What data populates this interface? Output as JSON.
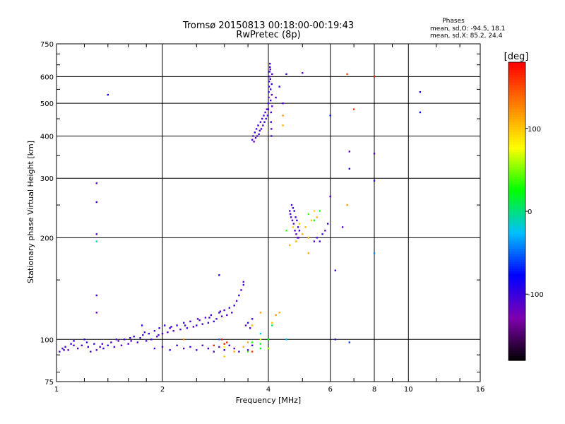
{
  "chart_data": {
    "type": "scatter",
    "title": "Tromsø 20150813 00:18:00-00:19:43",
    "subtitle": "RwPretec (8p)",
    "xlabel": "Frequency [MHz]",
    "ylabel": "Stationary phase Virtual Height [km]",
    "x_scale": "log",
    "y_scale": "log",
    "xlim": [
      1,
      16
    ],
    "ylim": [
      75,
      750
    ],
    "xticks": [
      1,
      2,
      4,
      6,
      8,
      10,
      16
    ],
    "xtick_labels": [
      "1",
      "2",
      "4",
      "6",
      "8",
      "10",
      "16"
    ],
    "yticks": [
      75,
      100,
      200,
      300,
      400,
      500,
      600,
      750
    ],
    "ytick_labels": [
      "75",
      "100",
      "200",
      "300",
      "400",
      "500",
      "600",
      "750"
    ],
    "grid": true,
    "stats": {
      "header": "Phases",
      "lines": [
        "mean, sd,O: -94.5, 18.1",
        "mean, sd,X:  85.2, 24.4"
      ]
    },
    "colorbar": {
      "label": "[deg]",
      "range": [
        -180,
        180
      ],
      "ticks": [
        100,
        0,
        -100
      ],
      "tick_labels": [
        "100",
        "0",
        "-100"
      ],
      "colors": [
        "#000000",
        "#8000b0",
        "#0000ff",
        "#00c0ff",
        "#00ff00",
        "#ffff00",
        "#ff8000",
        "#ff0000"
      ]
    },
    "series": [
      {
        "points": [
          [
            1.02,
            92,
            -110
          ],
          [
            1.04,
            94,
            -105
          ],
          [
            1.06,
            95,
            -100
          ],
          [
            1.08,
            93,
            -115
          ],
          [
            1.1,
            97,
            -108
          ],
          [
            1.12,
            99,
            -102
          ],
          [
            1.15,
            94,
            -112
          ],
          [
            1.18,
            96,
            -104
          ],
          [
            1.2,
            100,
            -98
          ],
          [
            1.23,
            95,
            -110
          ],
          [
            1.25,
            92,
            -106
          ],
          [
            1.28,
            97,
            -100
          ],
          [
            1.3,
            93,
            -112
          ],
          [
            1.33,
            95,
            -104
          ],
          [
            1.36,
            94,
            -108
          ],
          [
            1.4,
            96,
            -100
          ],
          [
            1.43,
            98,
            -110
          ],
          [
            1.46,
            95,
            -102
          ],
          [
            1.5,
            99,
            -106
          ],
          [
            1.53,
            96,
            -112
          ],
          [
            1.56,
            100,
            -98
          ],
          [
            1.6,
            97,
            -104
          ],
          [
            1.63,
            99,
            -110
          ],
          [
            1.66,
            102,
            -100
          ],
          [
            1.7,
            98,
            -106
          ],
          [
            1.73,
            101,
            -112
          ],
          [
            1.76,
            103,
            -102
          ],
          [
            1.8,
            99,
            -108
          ],
          [
            1.83,
            104,
            -100
          ],
          [
            1.86,
            100,
            -110
          ],
          [
            1.9,
            106,
            -104
          ],
          [
            1.93,
            102,
            -112
          ],
          [
            1.96,
            108,
            -98
          ],
          [
            2.0,
            104,
            -106
          ],
          [
            2.03,
            110,
            -102
          ],
          [
            2.07,
            105,
            -110
          ],
          [
            2.1,
            108,
            -100
          ],
          [
            2.15,
            106,
            -108
          ],
          [
            2.2,
            110,
            -104
          ],
          [
            2.25,
            107,
            -112
          ],
          [
            2.3,
            112,
            -98
          ],
          [
            2.35,
            108,
            -106
          ],
          [
            2.4,
            113,
            -102
          ],
          [
            2.45,
            109,
            -110
          ],
          [
            2.5,
            110,
            -100
          ],
          [
            2.55,
            114,
            -108
          ],
          [
            2.6,
            111,
            -104
          ],
          [
            2.65,
            116,
            -112
          ],
          [
            2.7,
            112,
            -98
          ],
          [
            2.75,
            118,
            -106
          ],
          [
            2.8,
            113,
            -102
          ],
          [
            2.85,
            115,
            -110
          ],
          [
            2.9,
            120,
            -100
          ],
          [
            2.95,
            117,
            -108
          ],
          [
            3.0,
            122,
            -104
          ],
          [
            3.05,
            118,
            -112
          ],
          [
            3.1,
            124,
            -98
          ],
          [
            3.15,
            120,
            -106
          ],
          [
            3.2,
            126,
            -102
          ],
          [
            3.25,
            130,
            -110
          ],
          [
            3.3,
            135,
            -100
          ],
          [
            3.35,
            140,
            -108
          ],
          [
            3.4,
            145,
            -104
          ],
          [
            3.45,
            110,
            -112
          ],
          [
            3.5,
            112,
            -98
          ],
          [
            3.55,
            108,
            -106
          ],
          [
            3.6,
            115,
            -102
          ],
          [
            1.05,
            93,
            -104
          ],
          [
            1.12,
            96,
            -110
          ],
          [
            1.22,
            98,
            -100
          ],
          [
            1.35,
            97,
            -106
          ],
          [
            1.48,
            100,
            -112
          ],
          [
            1.62,
            101,
            -98
          ],
          [
            1.78,
            105,
            -104
          ],
          [
            1.95,
            103,
            -110
          ],
          [
            2.12,
            109,
            -100
          ],
          [
            2.32,
            110,
            -106
          ],
          [
            2.52,
            115,
            -112
          ],
          [
            2.72,
            116,
            -98
          ],
          [
            2.92,
            121,
            -104
          ],
          [
            1.9,
            94,
            -102
          ],
          [
            2.0,
            95,
            -108
          ],
          [
            2.1,
            93,
            -100
          ],
          [
            2.2,
            96,
            -106
          ],
          [
            2.3,
            94,
            -112
          ],
          [
            2.4,
            95,
            -98
          ],
          [
            2.5,
            93,
            -104
          ],
          [
            2.6,
            96,
            -110
          ],
          [
            2.7,
            94,
            -100
          ],
          [
            2.8,
            92,
            -106
          ],
          [
            2.9,
            95,
            -112
          ],
          [
            3.0,
            93,
            -98
          ],
          [
            3.1,
            96,
            -104
          ],
          [
            3.2,
            94,
            -110
          ],
          [
            3.3,
            92,
            -100
          ],
          [
            3.4,
            95,
            -106
          ],
          [
            3.5,
            93,
            -112
          ],
          [
            3.6,
            96,
            -98
          ],
          [
            1.3,
            120,
            -120
          ],
          [
            2.9,
            155,
            -100
          ],
          [
            3.4,
            148,
            -110
          ],
          [
            1.75,
            110,
            -95
          ],
          [
            3.6,
            390,
            -110
          ],
          [
            3.62,
            400,
            -105
          ],
          [
            3.64,
            385,
            -115
          ],
          [
            3.66,
            410,
            -100
          ],
          [
            3.68,
            395,
            -108
          ],
          [
            3.7,
            420,
            -102
          ],
          [
            3.72,
            400,
            -112
          ],
          [
            3.74,
            430,
            -98
          ],
          [
            3.76,
            405,
            -106
          ],
          [
            3.78,
            415,
            -104
          ],
          [
            3.8,
            440,
            -110
          ],
          [
            3.82,
            420,
            -100
          ],
          [
            3.84,
            450,
            -108
          ],
          [
            3.86,
            430,
            -102
          ],
          [
            3.88,
            460,
            -112
          ],
          [
            3.9,
            440,
            -98
          ],
          [
            3.92,
            470,
            -106
          ],
          [
            3.94,
            450,
            -104
          ],
          [
            3.96,
            480,
            -110
          ],
          [
            3.98,
            460,
            -100
          ],
          [
            4.0,
            480,
            -108
          ],
          [
            4.0,
            500,
            -102
          ],
          [
            4.01,
            520,
            -112
          ],
          [
            4.01,
            540,
            -98
          ],
          [
            4.02,
            560,
            -106
          ],
          [
            4.02,
            580,
            -104
          ],
          [
            4.03,
            600,
            -110
          ],
          [
            4.03,
            620,
            -100
          ],
          [
            4.04,
            640,
            -108
          ],
          [
            4.04,
            655,
            -102
          ],
          [
            4.05,
            630,
            -112
          ],
          [
            4.05,
            590,
            -98
          ],
          [
            4.06,
            550,
            -106
          ],
          [
            4.06,
            510,
            -104
          ],
          [
            4.07,
            470,
            -110
          ],
          [
            4.07,
            440,
            -100
          ],
          [
            4.08,
            420,
            -108
          ],
          [
            4.08,
            400,
            -102
          ],
          [
            4.09,
            530,
            -112
          ],
          [
            4.09,
            570,
            -98
          ],
          [
            4.1,
            610,
            -106
          ],
          [
            4.1,
            490,
            -104
          ],
          [
            4.2,
            520,
            -110
          ],
          [
            4.3,
            560,
            -100
          ],
          [
            4.4,
            500,
            -108
          ],
          [
            4.5,
            610,
            -102
          ],
          [
            4.6,
            240,
            -110
          ],
          [
            4.62,
            235,
            -105
          ],
          [
            4.64,
            230,
            -115
          ],
          [
            4.66,
            250,
            -100
          ],
          [
            4.68,
            225,
            -108
          ],
          [
            4.7,
            245,
            -102
          ],
          [
            4.72,
            220,
            -112
          ],
          [
            4.74,
            240,
            -98
          ],
          [
            4.76,
            210,
            -106
          ],
          [
            4.78,
            230,
            -104
          ],
          [
            4.8,
            205,
            -110
          ],
          [
            4.82,
            225,
            -100
          ],
          [
            4.84,
            200,
            -108
          ],
          [
            4.86,
            215,
            -102
          ],
          [
            4.88,
            200,
            -112
          ],
          [
            4.9,
            210,
            -98
          ],
          [
            5.4,
            195,
            -110
          ],
          [
            5.5,
            200,
            -100
          ],
          [
            5.6,
            195,
            -108
          ],
          [
            5.7,
            205,
            -102
          ],
          [
            5.8,
            210,
            -112
          ],
          [
            5.9,
            220,
            -98
          ],
          [
            6.0,
            265,
            -106
          ],
          [
            6.2,
            160,
            -104
          ],
          [
            6.5,
            215,
            -110
          ],
          [
            6.0,
            460,
            -70
          ],
          [
            6.8,
            360,
            -110
          ],
          [
            6.8,
            320,
            -100
          ],
          [
            8.0,
            355,
            -108
          ],
          [
            8.0,
            295,
            -102
          ],
          [
            10.8,
            540,
            -90
          ],
          [
            10.8,
            470,
            -80
          ],
          [
            1.3,
            290,
            -112
          ],
          [
            1.3,
            255,
            -98
          ],
          [
            1.3,
            205,
            -106
          ],
          [
            1.3,
            135,
            -100
          ],
          [
            1.4,
            530,
            -95
          ],
          [
            5.0,
            615,
            -115
          ],
          [
            6.2,
            100,
            -110
          ]
        ]
      },
      {
        "points": [
          [
            4.4,
            460,
            120
          ],
          [
            4.4,
            430,
            110
          ],
          [
            4.6,
            190,
            105
          ],
          [
            4.7,
            215,
            95
          ],
          [
            4.8,
            195,
            110
          ],
          [
            4.9,
            220,
            100
          ],
          [
            5.0,
            205,
            115
          ],
          [
            5.1,
            215,
            105
          ],
          [
            5.2,
            200,
            110
          ],
          [
            5.3,
            225,
            100
          ],
          [
            5.4,
            240,
            95
          ],
          [
            5.5,
            230,
            110
          ],
          [
            4.3,
            120,
            110
          ],
          [
            4.2,
            118,
            120
          ],
          [
            4.1,
            112,
            100
          ],
          [
            3.8,
            120,
            115
          ],
          [
            3.6,
            110,
            105
          ],
          [
            3.4,
            95,
            105
          ],
          [
            3.2,
            92,
            110
          ],
          [
            3.0,
            89,
            100
          ],
          [
            3.5,
            98,
            115
          ],
          [
            2.3,
            100,
            130
          ],
          [
            5.2,
            180,
            110
          ],
          [
            6.7,
            250,
            120
          ],
          [
            6.7,
            610,
            150
          ],
          [
            7.0,
            480,
            155
          ],
          [
            8.0,
            600,
            170
          ],
          [
            8.0,
            180,
            -40
          ],
          [
            6.8,
            98,
            -60
          ],
          [
            4.5,
            100,
            -30
          ],
          [
            3.8,
            104,
            -20
          ],
          [
            1.3,
            195,
            -10
          ],
          [
            3.0,
            95,
            80
          ],
          [
            3.8,
            100,
            70
          ],
          [
            4.0,
            94,
            60
          ],
          [
            2.9,
            100,
            -50
          ]
        ]
      },
      {
        "points": [
          [
            3.0,
            97,
            170
          ],
          [
            3.05,
            98,
            165
          ],
          [
            2.95,
            100,
            175
          ],
          [
            3.6,
            92,
            160
          ],
          [
            2.8,
            96,
            168
          ]
        ]
      },
      {
        "points": [
          [
            3.5,
            92,
            40
          ],
          [
            3.6,
            98,
            30
          ],
          [
            3.8,
            97,
            20
          ],
          [
            4.1,
            110,
            10
          ],
          [
            5.2,
            235,
            40
          ],
          [
            5.4,
            225,
            20
          ],
          [
            5.6,
            240,
            30
          ],
          [
            4.5,
            210,
            35
          ],
          [
            3.8,
            94,
            15
          ],
          [
            4.0,
            100,
            25
          ]
        ]
      }
    ]
  }
}
